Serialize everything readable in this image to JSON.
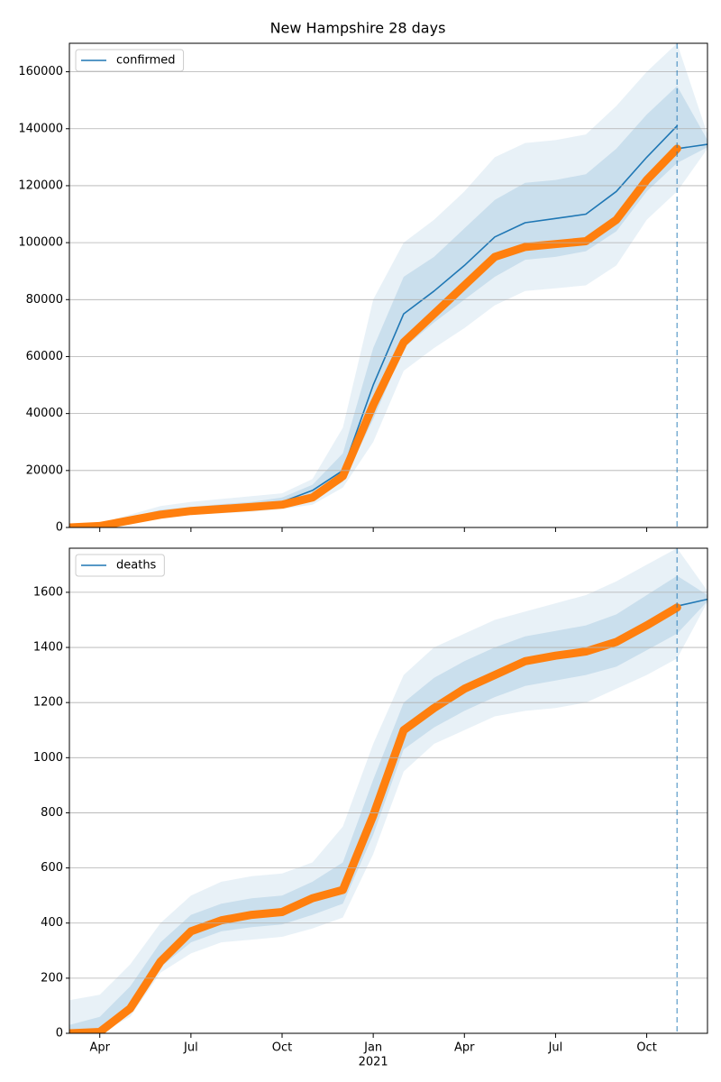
{
  "chart_data": [
    {
      "type": "line",
      "title": "New Hampshire 28 days",
      "x": [
        "2020-03",
        "2020-04",
        "2020-05",
        "2020-06",
        "2020-07",
        "2020-08",
        "2020-09",
        "2020-10",
        "2020-11",
        "2020-12",
        "2021-01",
        "2021-02",
        "2021-03",
        "2021-04",
        "2021-05",
        "2021-06",
        "2021-07",
        "2021-08",
        "2021-09",
        "2021-10",
        "2021-11",
        "2021-12"
      ],
      "xlim": [
        "2020-03",
        "2021-12"
      ],
      "xticks": [
        "2020-04",
        "2020-07",
        "2020-10",
        "2021-01",
        "2021-04",
        "2021-07",
        "2021-10"
      ],
      "ylim": [
        0,
        170000
      ],
      "yticks": [
        0,
        20000,
        40000,
        60000,
        80000,
        100000,
        120000,
        140000,
        160000
      ],
      "grid": true,
      "legend": "upper left",
      "vline": "2021-11",
      "bands": [
        {
          "color": "#1f77b4",
          "opacity": 0.1,
          "lower": [
            0,
            0,
            1500,
            3000,
            4500,
            5000,
            5500,
            6500,
            8000,
            14000,
            30000,
            55000,
            63000,
            70000,
            78000,
            83000,
            84000,
            85000,
            92000,
            108000,
            118000,
            133000
          ],
          "upper": [
            0,
            1500,
            4500,
            7500,
            9000,
            10000,
            11000,
            12000,
            17000,
            35000,
            80000,
            100000,
            108000,
            118000,
            130000,
            135000,
            136000,
            138000,
            148000,
            160000,
            170000,
            138000
          ]
        },
        {
          "color": "#1f77b4",
          "opacity": 0.15,
          "lower": [
            0,
            200,
            2000,
            3800,
            5200,
            5800,
            6400,
            7500,
            10000,
            16000,
            38000,
            63000,
            72000,
            80000,
            88000,
            94000,
            95000,
            97000,
            104000,
            118000,
            128000,
            133500
          ],
          "upper": [
            0,
            1000,
            3500,
            6200,
            7200,
            8200,
            9000,
            10500,
            15000,
            26000,
            63000,
            88000,
            95000,
            105000,
            115000,
            121000,
            122000,
            124000,
            133000,
            145000,
            155000,
            136000
          ]
        }
      ],
      "series": [
        {
          "name": "confirmed",
          "color": "#1f77b4",
          "style": "line",
          "values": [
            0,
            600,
            2800,
            5000,
            6200,
            7000,
            7800,
            9000,
            13000,
            20000,
            50000,
            75000,
            83000,
            92000,
            102000,
            107000,
            108500,
            110000,
            118000,
            130000,
            141000,
            null
          ]
        },
        {
          "color": "#1f77b4",
          "style": "line",
          "values": [
            null,
            null,
            null,
            null,
            null,
            null,
            null,
            null,
            null,
            null,
            null,
            null,
            null,
            null,
            null,
            null,
            null,
            null,
            null,
            null,
            133000,
            134500
          ]
        },
        {
          "color": "#ff7f0e",
          "style": "dots",
          "values": [
            0,
            500,
            2500,
            4500,
            5800,
            6500,
            7200,
            8000,
            10500,
            18000,
            43000,
            65000,
            75000,
            85000,
            95000,
            98500,
            99500,
            100500,
            108000,
            122000,
            133000,
            null
          ]
        }
      ]
    },
    {
      "type": "line",
      "x": [
        "2020-03",
        "2020-04",
        "2020-05",
        "2020-06",
        "2020-07",
        "2020-08",
        "2020-09",
        "2020-10",
        "2020-11",
        "2020-12",
        "2021-01",
        "2021-02",
        "2021-03",
        "2021-04",
        "2021-05",
        "2021-06",
        "2021-07",
        "2021-08",
        "2021-09",
        "2021-10",
        "2021-11",
        "2021-12"
      ],
      "xlim": [
        "2020-03",
        "2021-12"
      ],
      "xticks": [
        {
          "value": "2020-04",
          "label": "Apr"
        },
        {
          "value": "2020-07",
          "label": "Jul"
        },
        {
          "value": "2020-10",
          "label": "Oct"
        },
        {
          "value": "2021-01",
          "label": "Jan"
        },
        {
          "value": "2021-04",
          "label": "Apr"
        },
        {
          "value": "2021-07",
          "label": "Jul"
        },
        {
          "value": "2021-10",
          "label": "Oct"
        }
      ],
      "x_sublabel": {
        "value": "2021-01",
        "label": "2021"
      },
      "ylim": [
        0,
        1760
      ],
      "yticks": [
        0,
        200,
        400,
        600,
        800,
        1000,
        1200,
        1400,
        1600
      ],
      "grid": true,
      "legend": "upper left",
      "vline": "2021-11",
      "bands": [
        {
          "color": "#1f77b4",
          "opacity": 0.1,
          "lower": [
            0,
            0,
            60,
            220,
            290,
            330,
            340,
            350,
            380,
            420,
            650,
            950,
            1050,
            1100,
            1150,
            1170,
            1180,
            1200,
            1250,
            1300,
            1360,
            1565
          ],
          "upper": [
            120,
            140,
            250,
            400,
            500,
            550,
            570,
            580,
            620,
            750,
            1050,
            1300,
            1400,
            1450,
            1500,
            1530,
            1560,
            1590,
            1640,
            1700,
            1760,
            1605
          ]
        },
        {
          "color": "#1f77b4",
          "opacity": 0.15,
          "lower": [
            0,
            0,
            80,
            240,
            330,
            370,
            385,
            395,
            430,
            470,
            720,
            1030,
            1110,
            1170,
            1220,
            1260,
            1280,
            1300,
            1330,
            1390,
            1450,
            1568
          ],
          "upper": [
            30,
            60,
            170,
            330,
            430,
            470,
            490,
            500,
            550,
            620,
            920,
            1200,
            1290,
            1350,
            1400,
            1440,
            1460,
            1480,
            1520,
            1590,
            1660,
            1590
          ]
        }
      ],
      "series": [
        {
          "name": "deaths",
          "color": "#1f77b4",
          "style": "line",
          "values": [
            0,
            8,
            95,
            265,
            375,
            415,
            432,
            445,
            495,
            525,
            800,
            1105,
            1185,
            1255,
            1305,
            1352,
            1372,
            1388,
            1425,
            1485,
            1550,
            null
          ]
        },
        {
          "color": "#1f77b4",
          "style": "line",
          "values": [
            null,
            null,
            null,
            null,
            null,
            null,
            null,
            null,
            null,
            null,
            null,
            null,
            null,
            null,
            null,
            null,
            null,
            null,
            null,
            null,
            1550,
            1575
          ]
        },
        {
          "color": "#ff7f0e",
          "style": "dots",
          "values": [
            0,
            5,
            90,
            260,
            370,
            410,
            430,
            440,
            490,
            520,
            790,
            1100,
            1180,
            1250,
            1300,
            1350,
            1370,
            1385,
            1420,
            1480,
            1545,
            null
          ]
        }
      ]
    }
  ]
}
